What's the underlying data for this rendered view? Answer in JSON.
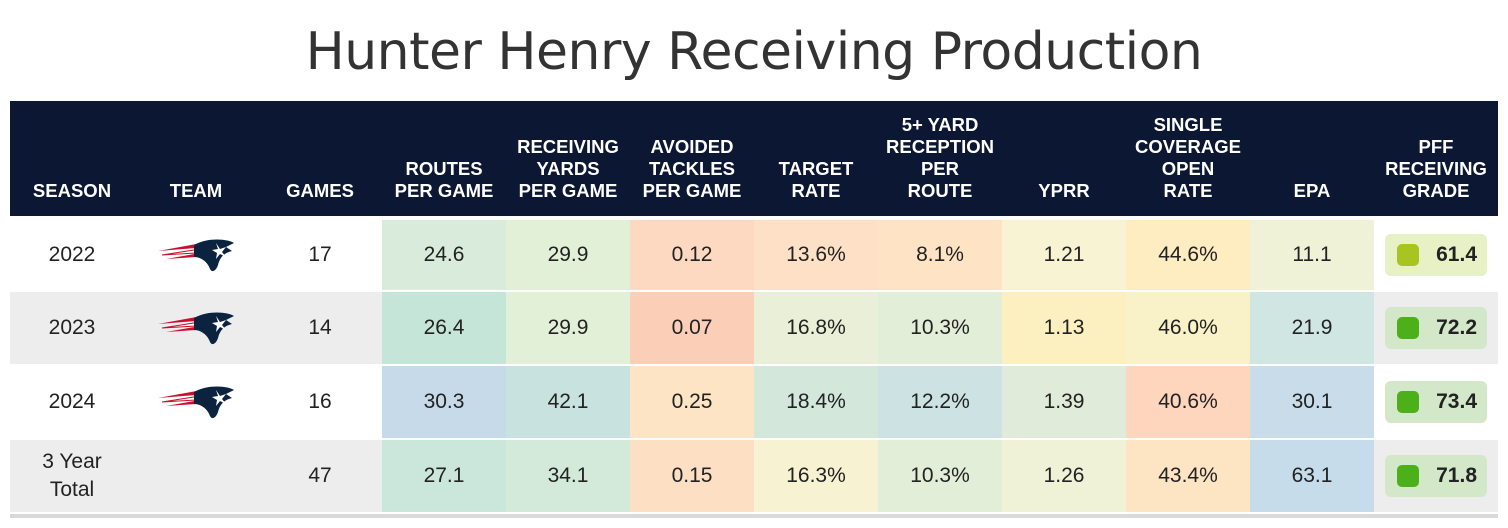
{
  "chart_data": {
    "type": "table",
    "title": "Hunter Henry Receiving Production",
    "columns": [
      "SEASON",
      "TEAM",
      "GAMES",
      "ROUTES PER GAME",
      "RECEIVING YARDS PER GAME",
      "AVOIDED TACKLES PER GAME",
      "TARGET RATE",
      "5+ YARD RECEPTION PER ROUTE",
      "YPRR",
      "SINGLE COVERAGE OPEN RATE",
      "EPA",
      "PFF RECEIVING GRADE"
    ],
    "header_lines": [
      [
        "SEASON"
      ],
      [
        "TEAM"
      ],
      [
        "GAMES"
      ],
      [
        "ROUTES",
        "PER GAME"
      ],
      [
        "RECEIVING",
        "YARDS",
        "PER GAME"
      ],
      [
        "AVOIDED",
        "TACKLES",
        "PER GAME"
      ],
      [
        "TARGET",
        "RATE"
      ],
      [
        "5+ YARD",
        "RECEPTION",
        "PER",
        "ROUTE"
      ],
      [
        "YPRR"
      ],
      [
        "SINGLE",
        "COVERAGE",
        "OPEN",
        "RATE"
      ],
      [
        "EPA"
      ],
      [
        "PFF",
        "RECEIVING",
        "GRADE"
      ]
    ],
    "rows": [
      {
        "season": "2022",
        "team_logo": "patriots-logo",
        "games": "17",
        "values": [
          "24.6",
          "29.9",
          "0.12",
          "13.6%",
          "8.1%",
          "1.21",
          "44.6%",
          "11.1"
        ],
        "colors": [
          "#d9ecdc",
          "#e3f0d8",
          "#fcd9c0",
          "#fde0c6",
          "#fee4c4",
          "#f8f3d2",
          "#fdedc0",
          "#f0f2d8"
        ],
        "grade": "61.4",
        "grade_bg": "#e7f1c5",
        "grade_dot": "#a7c520"
      },
      {
        "season": "2023",
        "team_logo": "patriots-logo",
        "games": "14",
        "values": [
          "26.4",
          "29.9",
          "0.07",
          "16.8%",
          "10.3%",
          "1.13",
          "46.0%",
          "21.9"
        ],
        "colors": [
          "#c4e5d7",
          "#e3f0d8",
          "#fbcfb7",
          "#eaefd7",
          "#e3eed9",
          "#fdf0c0",
          "#f9f2c8",
          "#cfe6e3"
        ],
        "grade": "72.2",
        "grade_bg": "#d2e8c8",
        "grade_dot": "#4cb01b"
      },
      {
        "season": "2024",
        "team_logo": "patriots-logo",
        "games": "16",
        "values": [
          "30.3",
          "42.1",
          "0.25",
          "18.4%",
          "12.2%",
          "1.39",
          "40.6%",
          "30.1"
        ],
        "colors": [
          "#c6daea",
          "#c8e3df",
          "#fde4c4",
          "#d3e8db",
          "#cde3e3",
          "#e0ecd9",
          "#fdd6bd",
          "#c8dcea"
        ],
        "grade": "73.4",
        "grade_bg": "#d2e8c8",
        "grade_dot": "#4cb01b"
      },
      {
        "season": "3 Year Total",
        "season_lines": [
          "3 Year",
          "Total"
        ],
        "team_logo": "",
        "games": "47",
        "values": [
          "27.1",
          "34.1",
          "0.15",
          "16.3%",
          "10.3%",
          "1.26",
          "43.4%",
          "63.1"
        ],
        "colors": [
          "#cbe7dc",
          "#d3eadb",
          "#fde0c4",
          "#f7f2d2",
          "#e3eed9",
          "#f0f2d8",
          "#fde5c3",
          "#c6dceb"
        ],
        "grade": "71.8",
        "grade_bg": "#d2e8c8",
        "grade_dot": "#4cb01b"
      }
    ]
  }
}
